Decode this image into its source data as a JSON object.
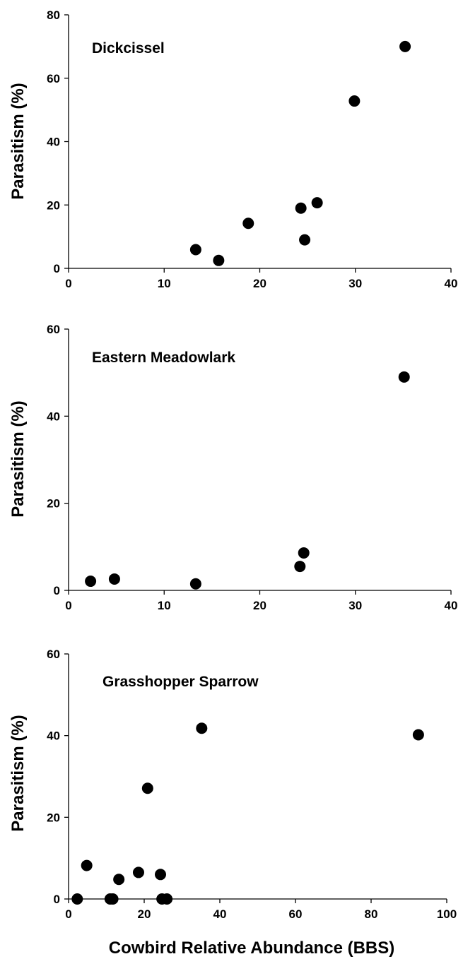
{
  "chart_data": [
    {
      "type": "scatter",
      "title": "Dickcissel",
      "ylabel": "Parasitism (%)",
      "xlabel": "",
      "xlim": [
        0,
        40
      ],
      "ylim": [
        0,
        80
      ],
      "xticks": [
        "0",
        "10",
        "20",
        "30",
        "40"
      ],
      "yticks": [
        "0",
        "20",
        "40",
        "60",
        "80"
      ],
      "grid": false,
      "x": [
        13.3,
        15.7,
        18.8,
        24.3,
        24.7,
        26.0,
        29.9,
        35.2
      ],
      "y": [
        5.9,
        2.5,
        14.2,
        19.0,
        9.0,
        20.7,
        52.8,
        70.0
      ]
    },
    {
      "type": "scatter",
      "title": "Eastern Meadowlark",
      "ylabel": "Parasitism (%)",
      "xlabel": "",
      "xlim": [
        0,
        40
      ],
      "ylim": [
        0,
        60
      ],
      "xticks": [
        "0",
        "10",
        "20",
        "30",
        "40"
      ],
      "yticks": [
        "0",
        "20",
        "40",
        "60"
      ],
      "grid": false,
      "x": [
        2.3,
        4.8,
        13.3,
        24.2,
        24.6,
        35.1
      ],
      "y": [
        2.1,
        2.6,
        1.5,
        5.5,
        8.6,
        49.0
      ]
    },
    {
      "type": "scatter",
      "title": "Grasshopper Sparrow",
      "ylabel": "Parasitism (%)",
      "xlabel": "Cowbird Relative Abundance (BBS)",
      "xlim": [
        0,
        100
      ],
      "ylim": [
        0,
        60
      ],
      "xticks": [
        "0",
        "20",
        "40",
        "60",
        "80",
        "100"
      ],
      "yticks": [
        "0",
        "20",
        "40",
        "60"
      ],
      "grid": false,
      "x": [
        2.3,
        4.8,
        11.0,
        11.7,
        13.3,
        18.5,
        20.9,
        24.3,
        24.7,
        26.0,
        35.2,
        92.5
      ],
      "y": [
        0.0,
        8.2,
        0.0,
        0.0,
        4.8,
        6.5,
        27.1,
        6.0,
        0.0,
        0.0,
        41.8,
        40.2
      ]
    }
  ]
}
